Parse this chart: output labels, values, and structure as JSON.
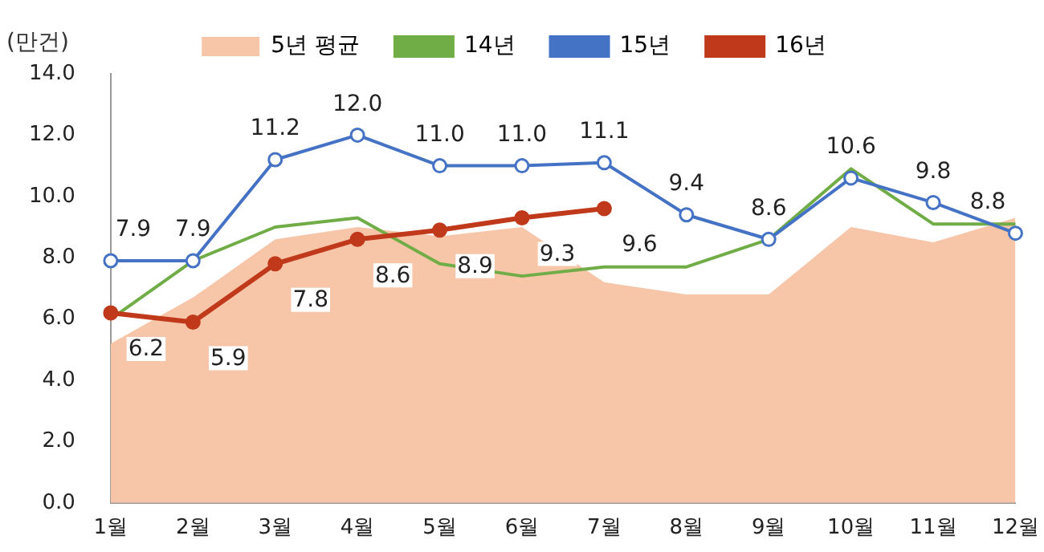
{
  "chart_data": {
    "type": "line",
    "ylabel": "(만건)",
    "categories": [
      "1월",
      "2월",
      "3월",
      "4월",
      "5월",
      "6월",
      "7월",
      "8월",
      "9월",
      "10월",
      "11월",
      "12월"
    ],
    "ylim": [
      0,
      14
    ],
    "yticks": [
      {
        "value": 0,
        "label": "0.0"
      },
      {
        "value": 2,
        "label": "2.0"
      },
      {
        "value": 4,
        "label": "4.0"
      },
      {
        "value": 6,
        "label": "6.0"
      },
      {
        "value": 8,
        "label": "8.0"
      },
      {
        "value": 10,
        "label": "10.0"
      },
      {
        "value": 12,
        "label": "12.0"
      },
      {
        "value": 14,
        "label": "14.0"
      }
    ],
    "grid": false,
    "legend": "top",
    "series": [
      {
        "name": "5년 평균",
        "type": "area",
        "color": "#f7c6a8",
        "marker": "none",
        "values": [
          5.2,
          6.7,
          8.6,
          9.0,
          8.7,
          9.0,
          7.2,
          6.8,
          6.8,
          9.0,
          8.5,
          9.3
        ]
      },
      {
        "name": "14년",
        "color": "#70ad47",
        "marker": "none",
        "values": [
          6.0,
          7.9,
          9.0,
          9.3,
          7.8,
          7.4,
          7.7,
          7.7,
          8.6,
          10.9,
          9.1,
          9.1
        ]
      },
      {
        "name": "15년",
        "color": "#4472c4",
        "marker": "circle",
        "values": [
          7.9,
          7.9,
          11.2,
          12.0,
          11.0,
          11.0,
          11.1,
          9.4,
          8.6,
          10.6,
          9.8,
          8.8
        ],
        "value_labels": [
          "7.9",
          "7.9",
          "11.2",
          "12.0",
          "11.0",
          "11.0",
          "11.1",
          "9.4",
          "8.6",
          "10.6",
          "9.8",
          "8.8"
        ]
      },
      {
        "name": "16년",
        "color": "#c0391b",
        "marker": "circle",
        "values": [
          6.2,
          5.9,
          7.8,
          8.6,
          8.9,
          9.3,
          9.6,
          null,
          null,
          null,
          null,
          null
        ],
        "value_labels": [
          "6.2",
          "5.9",
          "7.8",
          "8.6",
          "8.9",
          "9.3",
          "9.6",
          null,
          null,
          null,
          null,
          null
        ]
      }
    ]
  }
}
